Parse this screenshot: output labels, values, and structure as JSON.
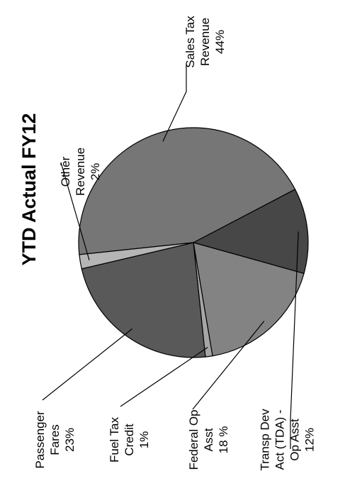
{
  "chart_data": {
    "type": "pie",
    "title": "YTD Actual FY12",
    "slices": [
      {
        "label_lines": [
          "Sales Tax",
          "Revenue",
          "44%"
        ],
        "value": 44,
        "color": "#767676"
      },
      {
        "label_lines": [
          "Transp Dev",
          "Act (TDA) -",
          "Op Asst",
          "12%"
        ],
        "value": 12,
        "color": "#474747"
      },
      {
        "label_lines": [
          "Federal  Op",
          "Asst",
          "18 %"
        ],
        "value": 18,
        "color": "#838383"
      },
      {
        "label_lines": [
          "Fuel Tax",
          "Credit",
          "1%"
        ],
        "value": 1,
        "color": "#a6a6a6"
      },
      {
        "label_lines": [
          "Passenger",
          "Fares",
          "23%"
        ],
        "value": 23,
        "color": "#595959"
      },
      {
        "label_lines": [
          "Other",
          "Revenue",
          "2%"
        ],
        "value": 2,
        "color": "#b5b5b5"
      }
    ]
  }
}
